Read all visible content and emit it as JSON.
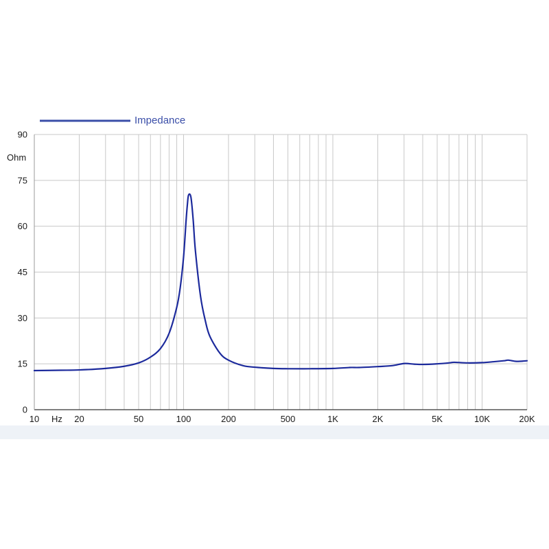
{
  "chart_data": {
    "type": "line",
    "title": "",
    "xlabel": "Hz",
    "ylabel": "Ohm",
    "x_scale": "log",
    "xlim": [
      10,
      20000
    ],
    "ylim": [
      0,
      90
    ],
    "grid": true,
    "legend_position": "top-left",
    "x_ticks": [
      {
        "value": 10,
        "label": "10"
      },
      {
        "value": 20,
        "label": "20"
      },
      {
        "value": 50,
        "label": "50"
      },
      {
        "value": 100,
        "label": "100"
      },
      {
        "value": 200,
        "label": "200"
      },
      {
        "value": 500,
        "label": "500"
      },
      {
        "value": 1000,
        "label": "1K"
      },
      {
        "value": 2000,
        "label": "2K"
      },
      {
        "value": 5000,
        "label": "5K"
      },
      {
        "value": 10000,
        "label": "10K"
      },
      {
        "value": 20000,
        "label": "20K"
      }
    ],
    "y_ticks": [
      {
        "value": 0,
        "label": "0"
      },
      {
        "value": 15,
        "label": "15"
      },
      {
        "value": 30,
        "label": "30"
      },
      {
        "value": 45,
        "label": "45"
      },
      {
        "value": 60,
        "label": "60"
      },
      {
        "value": 75,
        "label": "75"
      },
      {
        "value": 90,
        "label": "90"
      }
    ],
    "series": [
      {
        "name": "Impedance",
        "color": "#1c2a9c",
        "x": [
          10,
          15,
          20,
          30,
          40,
          50,
          60,
          70,
          80,
          90,
          95,
          100,
          104,
          106,
          108,
          112,
          116,
          120,
          130,
          140,
          150,
          175,
          200,
          250,
          300,
          400,
          500,
          700,
          1000,
          1300,
          1500,
          2000,
          2500,
          3000,
          3500,
          4000,
          5000,
          6000,
          6500,
          8000,
          10000,
          12000,
          14000,
          15000,
          17000,
          20000
        ],
        "y": [
          12.8,
          12.9,
          13.0,
          13.5,
          14.2,
          15.3,
          17.2,
          20.0,
          25.0,
          33.5,
          40.0,
          50.0,
          62.0,
          67.0,
          70.2,
          69.5,
          62.0,
          52.0,
          37.0,
          29.0,
          24.0,
          18.5,
          16.2,
          14.4,
          13.9,
          13.5,
          13.4,
          13.4,
          13.5,
          13.8,
          13.8,
          14.1,
          14.4,
          15.1,
          14.9,
          14.8,
          15.0,
          15.3,
          15.5,
          15.3,
          15.4,
          15.7,
          16.0,
          16.2,
          15.8,
          16.0
        ]
      }
    ]
  },
  "colors": {
    "line": "#1c2a9c",
    "legend_text": "#3a4ea8",
    "grid": "#c8c8c8",
    "axis": "#333333",
    "bottom_band": "#eef2f7"
  }
}
